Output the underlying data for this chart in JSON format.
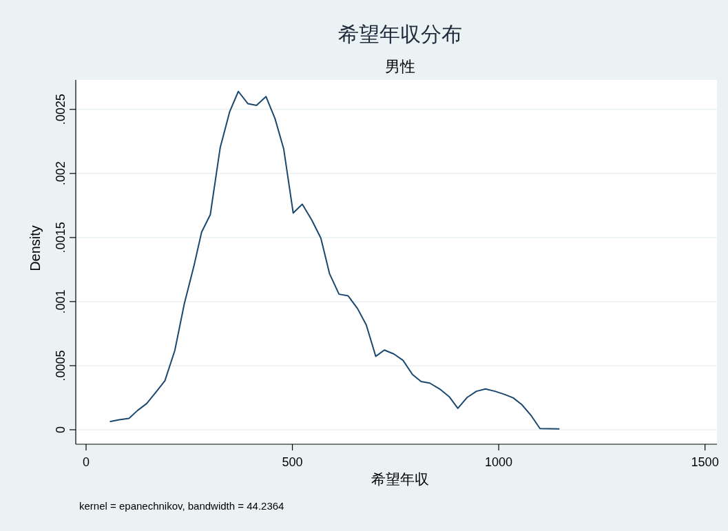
{
  "chart_data": {
    "type": "line",
    "title": "希望年収分布",
    "subtitle": "男性",
    "xlabel": "希望年収",
    "ylabel": "Density",
    "annotations": [
      "kernel = epanechnikov, bandwidth = 44.2364"
    ],
    "x": [
      59,
      80,
      104,
      125,
      147,
      170,
      191,
      215,
      238,
      261,
      280,
      301,
      325,
      348,
      369,
      392,
      413,
      436,
      458,
      479,
      502,
      524,
      547,
      569,
      590,
      613,
      635,
      658,
      679,
      702,
      723,
      746,
      768,
      791,
      812,
      833,
      857,
      880,
      901,
      923,
      946,
      968,
      991,
      1014,
      1035,
      1056,
      1079,
      1100,
      1146
    ],
    "series": [
      {
        "color": "#1a476f",
        "values": [
          6.4e-05,
          7.8e-05,
          8.9e-05,
          0.000151,
          0.000205,
          0.000296,
          0.000382,
          0.000618,
          0.000982,
          0.001273,
          0.001542,
          0.001678,
          0.0022,
          0.002482,
          0.00264,
          0.002545,
          0.002531,
          0.0026,
          0.002427,
          0.002191,
          0.001691,
          0.00176,
          0.001636,
          0.001495,
          0.001218,
          0.001058,
          0.001045,
          0.000945,
          0.000818,
          0.000573,
          0.000622,
          0.000591,
          0.000542,
          0.000431,
          0.000376,
          0.000364,
          0.000318,
          0.000258,
          0.000167,
          0.000251,
          0.0003,
          0.000318,
          0.0003,
          0.000276,
          0.000249,
          0.000196,
          0.000109,
          9e-06,
          7e-06
        ]
      }
    ],
    "xlim": [
      -25,
      1529
    ],
    "ylim": [
      -0.000113,
      0.00273
    ],
    "xticks": [
      0,
      500,
      1000,
      1500
    ],
    "yticks": [
      0,
      {
        "value": 0.0005,
        "label": ".0005"
      },
      {
        "value": 0.001,
        "label": ".001"
      },
      {
        "value": 0.0015,
        "label": ".0015"
      },
      {
        "value": 0.002,
        "label": ".002"
      },
      {
        "value": 0.0025,
        "label": ".0025"
      }
    ],
    "grid": "y",
    "line_style": "solid",
    "marker": "none"
  }
}
